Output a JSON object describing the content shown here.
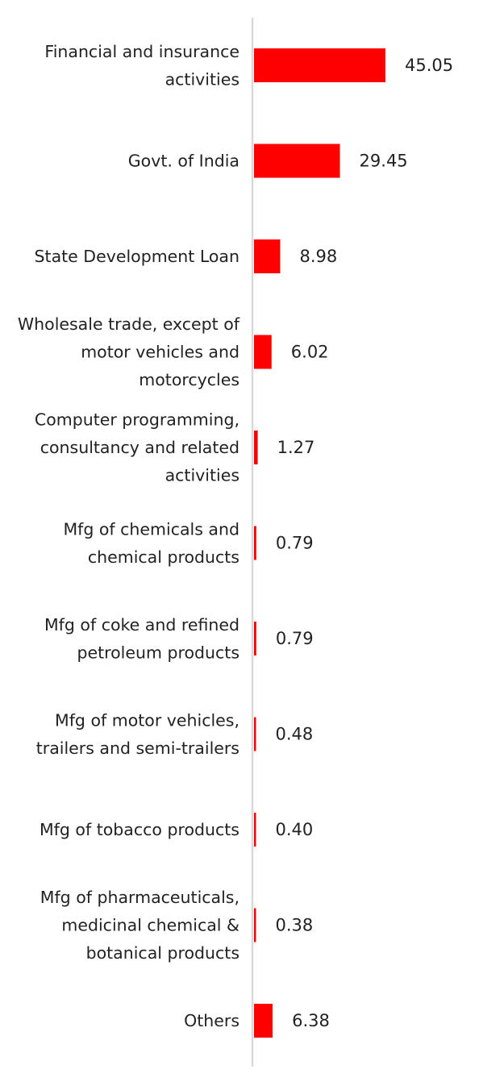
{
  "chart_data": {
    "type": "bar",
    "orientation": "horizontal",
    "categories": [
      [
        "Financial and insurance",
        "activities"
      ],
      [
        "Govt. of India"
      ],
      [
        "State Development Loan"
      ],
      [
        "Wholesale trade, except of",
        "motor vehicles and",
        "motorcycles"
      ],
      [
        "Computer programming,",
        "consultancy and related",
        "activities"
      ],
      [
        "Mfg of chemicals and",
        "chemical products"
      ],
      [
        "Mfg of coke and refined",
        "petroleum products"
      ],
      [
        "Mfg of motor vehicles,",
        "trailers and semi-trailers"
      ],
      [
        "Mfg of tobacco products"
      ],
      [
        "Mfg of pharmaceuticals,",
        "medicinal chemical &",
        "botanical products"
      ],
      [
        "Others"
      ]
    ],
    "values": [
      45.05,
      29.45,
      8.98,
      6.02,
      1.27,
      0.79,
      0.79,
      0.48,
      0.4,
      0.38,
      6.38
    ],
    "value_labels": [
      "45.05",
      "29.45",
      "8.98",
      "6.02",
      "1.27",
      "0.79",
      "0.79",
      "0.48",
      "0.40",
      "0.38",
      "6.38"
    ],
    "title": "",
    "xlabel": "",
    "ylabel": "",
    "xlim": [
      0,
      45.05
    ],
    "grid": false,
    "legend": "none",
    "bar_color": "#ff0000",
    "axis_color": "#d9d9d9"
  }
}
